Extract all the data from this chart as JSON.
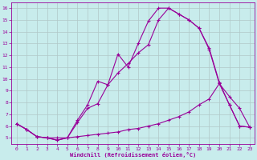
{
  "xlabel": "Windchill (Refroidissement éolien,°C)",
  "bg_color": "#c8ecec",
  "line_color": "#990099",
  "grid_color": "#b0c8c8",
  "xlim": [
    -0.5,
    23.5
  ],
  "ylim": [
    4.5,
    16.5
  ],
  "xticks": [
    0,
    1,
    2,
    3,
    4,
    5,
    6,
    7,
    8,
    9,
    10,
    11,
    12,
    13,
    14,
    15,
    16,
    17,
    18,
    19,
    20,
    21,
    22,
    23
  ],
  "yticks": [
    5,
    6,
    7,
    8,
    9,
    10,
    11,
    12,
    13,
    14,
    15,
    16
  ],
  "curve1_x": [
    0,
    1,
    2,
    3,
    4,
    5,
    6,
    7,
    8,
    9,
    10,
    11,
    12,
    13,
    14,
    15,
    16,
    17,
    18,
    19,
    20,
    21,
    22,
    23
  ],
  "curve1_y": [
    6.2,
    5.7,
    5.1,
    5.0,
    4.8,
    5.0,
    6.5,
    7.8,
    9.8,
    9.5,
    12.1,
    11.0,
    13.0,
    14.9,
    16.0,
    16.0,
    15.5,
    15.0,
    14.3,
    12.6,
    9.7,
    7.8,
    6.0,
    5.9
  ],
  "curve2_x": [
    0,
    1,
    2,
    3,
    4,
    5,
    6,
    7,
    8,
    9,
    10,
    11,
    12,
    13,
    14,
    15,
    16,
    17,
    18,
    19,
    20,
    21,
    22,
    23
  ],
  "curve2_y": [
    6.2,
    5.7,
    5.1,
    5.0,
    4.8,
    5.0,
    6.3,
    7.5,
    7.9,
    9.5,
    10.5,
    11.3,
    12.2,
    12.9,
    15.0,
    16.0,
    15.5,
    15.0,
    14.3,
    12.5,
    9.6,
    7.8,
    6.0,
    5.9
  ],
  "curve3_x": [
    0,
    1,
    2,
    3,
    4,
    5,
    6,
    7,
    8,
    9,
    10,
    11,
    12,
    13,
    14,
    15,
    16,
    17,
    18,
    19,
    20,
    21,
    22,
    23
  ],
  "curve3_y": [
    6.2,
    5.7,
    5.1,
    5.0,
    5.0,
    5.0,
    5.1,
    5.2,
    5.3,
    5.4,
    5.5,
    5.7,
    5.8,
    6.0,
    6.2,
    6.5,
    6.8,
    7.2,
    7.8,
    8.3,
    9.6,
    8.5,
    7.5,
    5.9
  ],
  "tick_fontsize": 4.5,
  "xlabel_fontsize": 5.0
}
